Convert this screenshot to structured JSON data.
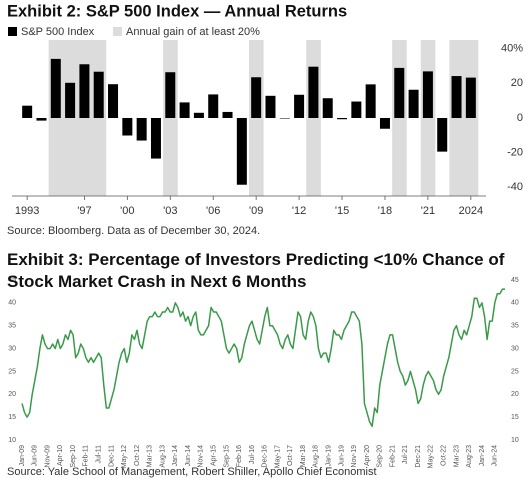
{
  "chart_data": [
    {
      "type": "bar",
      "title": "Exhibit 2: S&P 500 Index — Annual Returns",
      "x": [
        1993,
        1994,
        1995,
        1996,
        1997,
        1998,
        1999,
        2000,
        2001,
        2002,
        2003,
        2004,
        2005,
        2006,
        2007,
        2008,
        2009,
        2010,
        2011,
        2012,
        2013,
        2014,
        2015,
        2016,
        2017,
        2018,
        2019,
        2020,
        2021,
        2022,
        2023,
        2024
      ],
      "series": [
        {
          "name": "S&P 500 Index",
          "color": "#000000",
          "values": [
            7.1,
            -1.5,
            34.1,
            20.3,
            31.0,
            26.7,
            19.5,
            -10.1,
            -13.0,
            -23.4,
            26.4,
            9.0,
            3.0,
            13.6,
            3.5,
            -38.5,
            23.5,
            12.8,
            0.0,
            13.4,
            29.6,
            11.4,
            -0.7,
            9.5,
            19.4,
            -6.2,
            28.9,
            16.3,
            26.9,
            -19.4,
            24.2,
            23.3
          ]
        }
      ],
      "highlight": {
        "name": "Annual gain of at least 20%",
        "color": "#dcdcdc",
        "x": [
          1995,
          1996,
          1997,
          1998,
          2003,
          2009,
          2013,
          2019,
          2021,
          2023,
          2024
        ]
      },
      "xticks": [
        1993,
        {
          "value": 1997,
          "label": "'97"
        },
        {
          "value": 2000,
          "label": "'00"
        },
        {
          "value": 2003,
          "label": "'03"
        },
        {
          "value": 2006,
          "label": "'06"
        },
        {
          "value": 2009,
          "label": "'09"
        },
        {
          "value": 2012,
          "label": "'12"
        },
        {
          "value": 2015,
          "label": "'15"
        },
        {
          "value": 2018,
          "label": "'18"
        },
        {
          "value": 2021,
          "label": "'21"
        },
        2024
      ],
      "ylim": [
        -45,
        45
      ],
      "yticks": [
        {
          "value": 40,
          "label": "40%"
        },
        20,
        0,
        -20,
        -40
      ],
      "source": "Source: Bloomberg. Data as of December 30, 2024."
    },
    {
      "type": "line",
      "title": "Exhibit 3: Percentage of Investors Predicting <10% Chance of Stock Market Crash in Next 6 Months",
      "x": [
        "Jan-09",
        null,
        null,
        null,
        null,
        "Jun-09",
        null,
        null,
        null,
        null,
        "Nov-09",
        null,
        null,
        null,
        null,
        "Apr-10",
        null,
        null,
        null,
        null,
        "Sep-10",
        null,
        null,
        null,
        null,
        "Feb-11",
        null,
        null,
        null,
        null,
        "Jul-11",
        null,
        null,
        null,
        null,
        "Dec-11",
        null,
        null,
        null,
        null,
        "May-12",
        null,
        null,
        null,
        null,
        "Oct-12",
        null,
        null,
        null,
        null,
        "Mar-13",
        null,
        null,
        null,
        null,
        "Aug-13",
        null,
        null,
        null,
        null,
        "Jan-14",
        null,
        null,
        null,
        null,
        "Jun-14",
        null,
        null,
        null,
        null,
        "Nov-14",
        null,
        null,
        null,
        null,
        "Apr-15",
        null,
        null,
        null,
        null,
        "Sep-15",
        null,
        null,
        null,
        null,
        "Feb-16",
        null,
        null,
        null,
        null,
        "Jul-16",
        null,
        null,
        null,
        null,
        "Dec-16",
        null,
        null,
        null,
        null,
        "May-17",
        null,
        null,
        null,
        null,
        "Oct-17",
        null,
        null,
        null,
        null,
        "Mar-18",
        null,
        null,
        null,
        null,
        "Aug-18",
        null,
        null,
        null,
        null,
        "Jan-19",
        null,
        null,
        null,
        null,
        "Jun-19",
        null,
        null,
        null,
        null,
        "Nov-19",
        null,
        null,
        null,
        null,
        "Apr-20",
        null,
        null,
        null,
        null,
        "Sep-20",
        null,
        null,
        null,
        null,
        "Feb-21",
        null,
        null,
        null,
        null,
        "Jul-21",
        null,
        null,
        null,
        null,
        "Dec-21",
        null,
        null,
        null,
        null,
        "May-22",
        null,
        null,
        null,
        null,
        "Oct-22",
        null,
        null,
        null,
        null,
        "Mar-23",
        null,
        null,
        null,
        null,
        "Aug-23",
        null,
        null,
        null,
        null,
        "Jan-24",
        null,
        null,
        null,
        null,
        "Jun-24",
        null,
        null,
        null,
        null
      ],
      "series": [
        {
          "color": "#3a9a4a",
          "values": [
            18,
            16,
            15,
            16,
            20,
            23,
            26,
            30,
            33,
            31,
            30,
            30,
            31,
            30,
            32,
            30,
            31,
            33,
            32,
            34,
            33,
            28,
            29,
            31,
            30,
            28,
            27,
            28,
            27,
            28,
            29,
            28,
            22,
            17,
            17,
            19,
            21,
            24,
            27,
            29,
            30,
            27,
            29,
            33,
            32,
            34,
            31,
            30,
            33,
            36,
            37,
            37,
            38,
            37,
            37,
            38,
            38,
            39,
            38,
            38,
            40,
            39,
            37,
            38,
            36,
            37,
            35,
            37,
            38,
            34,
            33,
            33,
            34,
            35,
            39,
            38,
            38,
            37,
            36,
            33,
            30,
            29,
            30,
            31,
            30,
            27,
            28,
            31,
            33,
            35,
            36,
            34,
            32,
            31,
            34,
            37,
            39,
            35,
            35,
            34,
            33,
            31,
            30,
            32,
            33,
            31,
            30,
            34,
            38,
            37,
            33,
            32,
            36,
            38,
            37,
            35,
            30,
            28,
            29,
            29,
            27,
            30,
            34,
            33,
            33,
            32,
            34,
            35,
            36,
            38,
            38,
            37,
            36,
            31,
            18,
            16,
            14,
            13,
            17,
            16,
            22,
            25,
            28,
            31,
            33,
            33,
            30,
            27,
            25,
            24,
            22,
            23,
            25,
            23,
            21,
            18,
            19,
            22,
            24,
            25,
            24,
            23,
            21,
            20,
            21,
            24,
            26,
            28,
            31,
            34,
            35,
            33,
            32,
            34,
            33,
            35,
            37,
            41,
            41,
            39,
            40,
            37,
            32,
            36,
            36,
            40,
            42,
            42,
            43,
            43
          ]
        }
      ],
      "ylim": [
        10,
        45
      ],
      "yticks": [
        10,
        15,
        20,
        25,
        30,
        35,
        40,
        45
      ],
      "source": "Source: Yale School of Management, Robert Shiller, Apollo Chief Economist"
    }
  ]
}
